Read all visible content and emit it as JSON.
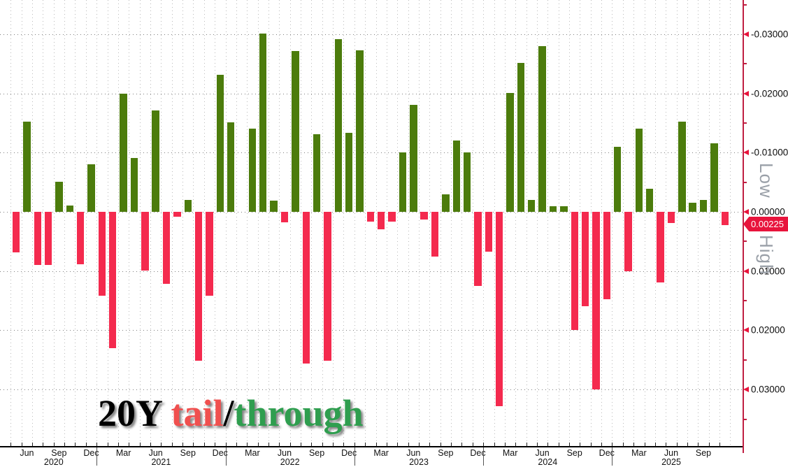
{
  "chart_data": {
    "type": "bar",
    "title": "20Y tail/through",
    "y_axis_inverted": true,
    "grid": true,
    "legend_position": "none",
    "series_colors": [
      {
        "name": "tail",
        "color": "#f42a4e"
      },
      {
        "name": "through",
        "color": "#4c7c0c"
      }
    ],
    "y_ticks": [
      {
        "label": "-0.03000",
        "v": -0.03
      },
      {
        "label": "-0.02000",
        "v": -0.02
      },
      {
        "label": "-0.01000",
        "v": -0.01
      },
      {
        "label": "0.00000",
        "v": 0.0
      },
      {
        "label": "0.01000",
        "v": 0.01
      },
      {
        "label": "0.02000",
        "v": 0.02
      },
      {
        "label": "0.03000",
        "v": 0.03
      }
    ],
    "y_minor_tick_step": 0.005,
    "months": [
      {
        "m": "May",
        "y": 2020,
        "v": 0.0069
      },
      {
        "m": "Jun",
        "y": 2020,
        "v": -0.0152
      },
      {
        "m": "Jul",
        "y": 2020,
        "v": 0.009
      },
      {
        "m": "Aug",
        "y": 2020,
        "v": 0.009
      },
      {
        "m": "Sep",
        "y": 2020,
        "v": -0.0051
      },
      {
        "m": "Oct",
        "y": 2020,
        "v": -0.0011
      },
      {
        "m": "Nov",
        "y": 2020,
        "v": 0.0088
      },
      {
        "m": "Dec",
        "y": 2020,
        "v": -0.008
      },
      {
        "m": "Jan",
        "y": 2021,
        "v": 0.0142
      },
      {
        "m": "Feb",
        "y": 2021,
        "v": 0.023
      },
      {
        "m": "Mar",
        "y": 2021,
        "v": -0.02
      },
      {
        "m": "Apr",
        "y": 2021,
        "v": -0.0091
      },
      {
        "m": "May",
        "y": 2021,
        "v": 0.0099
      },
      {
        "m": "Jun",
        "y": 2021,
        "v": -0.0171
      },
      {
        "m": "Jul",
        "y": 2021,
        "v": 0.0122
      },
      {
        "m": "Aug",
        "y": 2021,
        "v": 0.0008
      },
      {
        "m": "Sep",
        "y": 2021,
        "v": -0.002
      },
      {
        "m": "Oct",
        "y": 2021,
        "v": 0.0251
      },
      {
        "m": "Nov",
        "y": 2021,
        "v": 0.0142
      },
      {
        "m": "Dec",
        "y": 2021,
        "v": -0.0231
      },
      {
        "m": "Jan",
        "y": 2022,
        "v": -0.0151
      },
      {
        "m": "Feb",
        "y": 2022,
        "v": 0.0
      },
      {
        "m": "Mar",
        "y": 2022,
        "v": -0.014
      },
      {
        "m": "Apr",
        "y": 2022,
        "v": -0.0301
      },
      {
        "m": "May",
        "y": 2022,
        "v": -0.0019
      },
      {
        "m": "Jun",
        "y": 2022,
        "v": 0.0018
      },
      {
        "m": "Jul",
        "y": 2022,
        "v": -0.0272
      },
      {
        "m": "Aug",
        "y": 2022,
        "v": 0.0256
      },
      {
        "m": "Sep",
        "y": 2022,
        "v": -0.0131
      },
      {
        "m": "Oct",
        "y": 2022,
        "v": 0.0251
      },
      {
        "m": "Nov",
        "y": 2022,
        "v": -0.0292
      },
      {
        "m": "Dec",
        "y": 2022,
        "v": -0.0133
      },
      {
        "m": "Jan",
        "y": 2023,
        "v": -0.0273
      },
      {
        "m": "Feb",
        "y": 2023,
        "v": 0.0016
      },
      {
        "m": "Mar",
        "y": 2023,
        "v": 0.003
      },
      {
        "m": "Apr",
        "y": 2023,
        "v": 0.0016
      },
      {
        "m": "May",
        "y": 2023,
        "v": -0.01
      },
      {
        "m": "Jun",
        "y": 2023,
        "v": -0.0181
      },
      {
        "m": "Jul",
        "y": 2023,
        "v": 0.0013
      },
      {
        "m": "Aug",
        "y": 2023,
        "v": 0.0075
      },
      {
        "m": "Sep",
        "y": 2023,
        "v": -0.003
      },
      {
        "m": "Oct",
        "y": 2023,
        "v": -0.0121
      },
      {
        "m": "Nov",
        "y": 2023,
        "v": -0.01
      },
      {
        "m": "Dec",
        "y": 2023,
        "v": 0.0125
      },
      {
        "m": "Jan",
        "y": 2024,
        "v": 0.0067
      },
      {
        "m": "Feb",
        "y": 2024,
        "v": 0.0328
      },
      {
        "m": "Mar",
        "y": 2024,
        "v": -0.0201
      },
      {
        "m": "Apr",
        "y": 2024,
        "v": -0.0251
      },
      {
        "m": "May",
        "y": 2024,
        "v": -0.002
      },
      {
        "m": "Jun",
        "y": 2024,
        "v": -0.028
      },
      {
        "m": "Jul",
        "y": 2024,
        "v": -0.0009
      },
      {
        "m": "Aug",
        "y": 2024,
        "v": -0.0009
      },
      {
        "m": "Sep",
        "y": 2024,
        "v": 0.02
      },
      {
        "m": "Oct",
        "y": 2024,
        "v": 0.0159
      },
      {
        "m": "Nov",
        "y": 2024,
        "v": 0.03
      },
      {
        "m": "Dec",
        "y": 2024,
        "v": 0.0148
      },
      {
        "m": "Jan",
        "y": 2025,
        "v": -0.011
      },
      {
        "m": "Feb",
        "y": 2025,
        "v": 0.01
      },
      {
        "m": "Mar",
        "y": 2025,
        "v": -0.014
      },
      {
        "m": "Apr",
        "y": 2025,
        "v": -0.0039
      },
      {
        "m": "May",
        "y": 2025,
        "v": 0.0119
      },
      {
        "m": "Jun",
        "y": 2025,
        "v": 0.0019
      },
      {
        "m": "Jul",
        "y": 2025,
        "v": -0.0152
      },
      {
        "m": "Aug",
        "y": 2025,
        "v": -0.0015
      },
      {
        "m": "Sep",
        "y": 2025,
        "v": -0.002
      },
      {
        "m": "Oct",
        "y": 2025,
        "v": -0.0116
      },
      {
        "m": "Nov",
        "y": 2025,
        "v": 0.00225
      }
    ],
    "x_quarter_label_months": [
      "Jun",
      "Sep",
      "Dec",
      "Mar"
    ],
    "x_year_labels": [
      "2020",
      "2021",
      "2022",
      "2023",
      "2024",
      "2025"
    ]
  },
  "right_axis": {
    "badge": "0.00225",
    "low_label": "Low",
    "high_label": "High"
  },
  "watermark": {
    "p1": "20Y ",
    "p2": "tail",
    "p3": "/",
    "p4": "through"
  }
}
